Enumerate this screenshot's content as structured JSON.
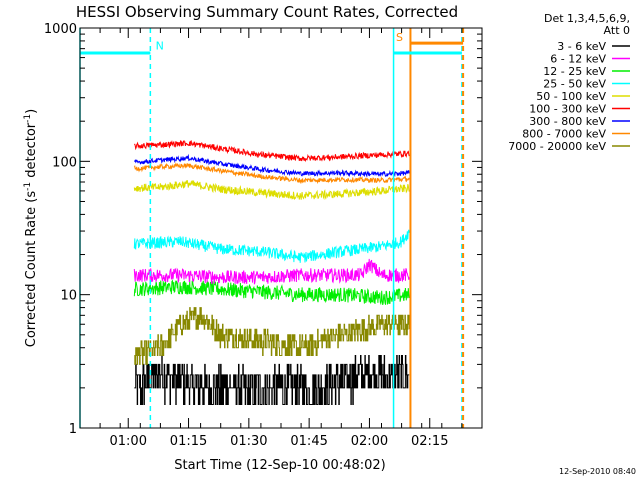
{
  "chart_data": {
    "type": "line",
    "title": "HESSI Observing Summary Count Rates, Corrected",
    "xlabel": "Start Time (12-Sep-10 00:48:02)",
    "ylabel": "Corrected Count Rate (s",
    "ylabel_sup1": "-1",
    "ylabel_mid": " detector",
    "ylabel_sup2": "-1",
    "ylabel_end": ")",
    "x_unit": "minutes since 00:48:02",
    "xlim": [
      0,
      100
    ],
    "ylim": [
      1,
      1000
    ],
    "y_scale": "log",
    "x_ticks": [
      {
        "minute": 12,
        "label": "01:00"
      },
      {
        "minute": 27,
        "label": "01:15"
      },
      {
        "minute": 42,
        "label": "01:30"
      },
      {
        "minute": 57,
        "label": "01:45"
      },
      {
        "minute": 72,
        "label": "02:00"
      },
      {
        "minute": 87,
        "label": "02:15"
      }
    ],
    "y_ticks": [
      {
        "value": 1,
        "label": "1"
      },
      {
        "value": 10,
        "label": "10"
      },
      {
        "value": 100,
        "label": "100"
      },
      {
        "value": 1000,
        "label": "1000"
      }
    ],
    "legend": {
      "placement": "right",
      "header": [
        "Det 1,3,4,5,6,9,",
        "Att 0"
      ],
      "entries": [
        {
          "label": "3 - 6 keV",
          "color": "#000000"
        },
        {
          "label": "6 - 12 keV",
          "color": "#ff00ff"
        },
        {
          "label": "12 - 25 keV",
          "color": "#00ee00"
        },
        {
          "label": "25 - 50 keV",
          "color": "#00ffff"
        },
        {
          "label": "50 - 100 keV",
          "color": "#dddd00"
        },
        {
          "label": "100 - 300 keV",
          "color": "#ff0000"
        },
        {
          "label": "300 - 800 keV",
          "color": "#0000ff"
        },
        {
          "label": "800 - 7000 keV",
          "color": "#ff8800"
        },
        {
          "label": "7000 - 20000 keV",
          "color": "#888800"
        }
      ]
    },
    "series": [
      {
        "name": "100 - 300 keV",
        "color": "#ff0000",
        "start": 13.5,
        "end": 82,
        "points": [
          [
            13.5,
            130
          ],
          [
            20,
            133
          ],
          [
            27,
            137
          ],
          [
            35,
            125
          ],
          [
            45,
            112
          ],
          [
            55,
            105
          ],
          [
            65,
            108
          ],
          [
            75,
            112
          ],
          [
            82,
            115
          ]
        ],
        "noise": 0.05
      },
      {
        "name": "300 - 800 keV",
        "color": "#0000ff",
        "start": 13.5,
        "end": 82,
        "points": [
          [
            13.5,
            98
          ],
          [
            20,
            102
          ],
          [
            27,
            106
          ],
          [
            35,
            96
          ],
          [
            45,
            87
          ],
          [
            55,
            81
          ],
          [
            65,
            82
          ],
          [
            75,
            80
          ],
          [
            82,
            82
          ]
        ],
        "noise": 0.04
      },
      {
        "name": "800 - 7000 keV",
        "color": "#ff8800",
        "start": 13.5,
        "end": 82,
        "points": [
          [
            13.5,
            88
          ],
          [
            20,
            91
          ],
          [
            27,
            93
          ],
          [
            35,
            85
          ],
          [
            45,
            77
          ],
          [
            55,
            72
          ],
          [
            65,
            73
          ],
          [
            75,
            72
          ],
          [
            82,
            74
          ]
        ],
        "noise": 0.04
      },
      {
        "name": "50 - 100 keV",
        "color": "#dddd00",
        "start": 13.5,
        "end": 82,
        "points": [
          [
            13.5,
            63
          ],
          [
            20,
            64
          ],
          [
            27,
            68
          ],
          [
            35,
            62
          ],
          [
            45,
            58
          ],
          [
            55,
            55
          ],
          [
            65,
            57
          ],
          [
            75,
            60
          ],
          [
            82,
            63
          ]
        ],
        "noise": 0.07
      },
      {
        "name": "25 - 50 keV",
        "color": "#00ffff",
        "start": 13.5,
        "end": 82,
        "points": [
          [
            13.5,
            24
          ],
          [
            25,
            25
          ],
          [
            35,
            22
          ],
          [
            45,
            21
          ],
          [
            55,
            19
          ],
          [
            65,
            21
          ],
          [
            75,
            23
          ],
          [
            80,
            25
          ],
          [
            82,
            30
          ]
        ],
        "noise": 0.1
      },
      {
        "name": "6 - 12 keV",
        "color": "#ff00ff",
        "start": 13.5,
        "end": 82,
        "points": [
          [
            13.5,
            14
          ],
          [
            25,
            14
          ],
          [
            35,
            13.5
          ],
          [
            45,
            13.5
          ],
          [
            55,
            14
          ],
          [
            70,
            14
          ],
          [
            72,
            17
          ],
          [
            75,
            14
          ],
          [
            82,
            14
          ]
        ],
        "noise": 0.12
      },
      {
        "name": "12 - 25 keV",
        "color": "#00ee00",
        "start": 13.5,
        "end": 82,
        "points": [
          [
            13.5,
            11
          ],
          [
            25,
            11.5
          ],
          [
            35,
            11
          ],
          [
            45,
            10.5
          ],
          [
            55,
            10
          ],
          [
            65,
            10
          ],
          [
            75,
            9.5
          ],
          [
            82,
            10
          ]
        ],
        "noise": 0.13
      },
      {
        "name": "7000 - 20000 keV",
        "color": "#888800",
        "start": 13.5,
        "end": 82,
        "points": [
          [
            13.5,
            3.5
          ],
          [
            20,
            4
          ],
          [
            25,
            6
          ],
          [
            30,
            7
          ],
          [
            35,
            5
          ],
          [
            45,
            4.5
          ],
          [
            55,
            4
          ],
          [
            65,
            5
          ],
          [
            75,
            6
          ],
          [
            82,
            6
          ]
        ],
        "noise": 0.2,
        "step": true
      },
      {
        "name": "3 - 6 keV",
        "color": "#000000",
        "start": 13.5,
        "end": 82,
        "points": [
          [
            13.5,
            2
          ],
          [
            20,
            2.5
          ],
          [
            30,
            2
          ],
          [
            40,
            2
          ],
          [
            50,
            2
          ],
          [
            60,
            2
          ],
          [
            70,
            2.5
          ],
          [
            82,
            2.5
          ]
        ],
        "noise": 0.35,
        "step": true
      }
    ],
    "vertical_markers": [
      {
        "minute": 0,
        "color": "#00ffff",
        "style": "solid"
      },
      {
        "minute": 17.5,
        "color": "#00ffff",
        "style": "dashed"
      },
      {
        "minute": 78,
        "color": "#00ffff",
        "style": "solid"
      },
      {
        "minute": 95,
        "color": "#00ffff",
        "style": "dashed"
      },
      {
        "minute": 82.2,
        "color": "#ff8800",
        "style": "solid"
      },
      {
        "minute": 95.3,
        "color": "#ff8800",
        "style": "dashed"
      }
    ],
    "horizontal_bars": [
      {
        "from": 0,
        "to": 17.5,
        "value": 650,
        "color": "#00ffff"
      },
      {
        "from": 78,
        "to": 95,
        "value": 650,
        "color": "#00ffff"
      },
      {
        "from": 82.2,
        "to": 95.3,
        "value": 770,
        "color": "#ff8800"
      }
    ],
    "annotations": [
      {
        "text": "N",
        "minute": 18.8,
        "value": 690,
        "color": "#00ffff"
      },
      {
        "text": "S",
        "minute": 78.6,
        "value": 800,
        "color": "#ff8800"
      }
    ]
  },
  "footer_timestamp": "12-Sep-2010 08:40"
}
